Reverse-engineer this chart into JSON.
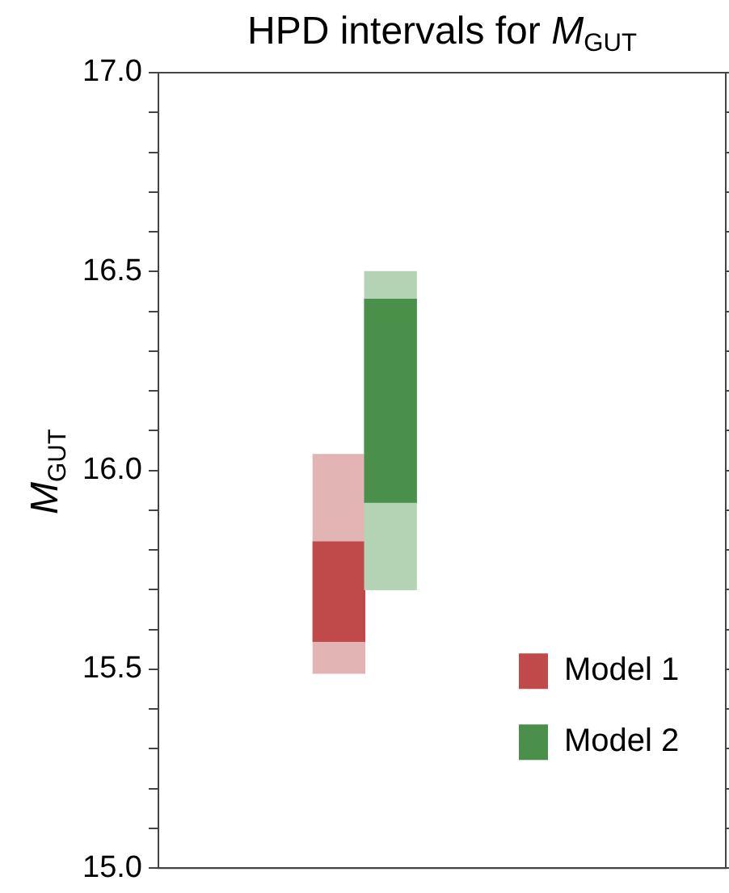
{
  "chart_data": {
    "type": "bar",
    "title": "HPD intervals for M$_{GUT}$",
    "ylabel": "M$_{GUT}$",
    "categories": [
      null,
      null,
      null,
      null,
      null,
      null,
      null,
      null,
      null,
      null,
      null
    ],
    "series": [
      {
        "color": "#e3b4b4",
        "values": [
          null,
          null,
          null,
          0.55,
          null,
          null,
          null,
          null,
          null,
          null,
          null
        ],
        "base": [
          null,
          null,
          null,
          15.49,
          null,
          null,
          null,
          null,
          null,
          null,
          null
        ]
      },
      {
        "name": "Model 1",
        "color": "#c04a4a",
        "values": [
          null,
          null,
          null,
          0.25,
          null,
          null,
          null,
          null,
          null,
          null,
          null
        ],
        "base": [
          null,
          null,
          null,
          15.57,
          null,
          null,
          null,
          null,
          null,
          null,
          null
        ]
      },
      {
        "color": "#b4d2b4",
        "values": [
          null,
          null,
          null,
          null,
          0.8,
          null,
          null,
          null,
          null,
          null,
          null
        ],
        "base": [
          null,
          null,
          null,
          null,
          15.7,
          null,
          null,
          null,
          null,
          null,
          null
        ]
      },
      {
        "name": "Model 2",
        "color": "#4a8f4a",
        "values": [
          null,
          null,
          null,
          null,
          0.51,
          null,
          null,
          null,
          null,
          null,
          null
        ],
        "base": [
          null,
          null,
          null,
          null,
          15.92,
          null,
          null,
          null,
          null,
          null,
          null
        ]
      }
    ],
    "ylim": [
      15.0,
      17.0
    ],
    "yticks": [
      {
        "value": 15.0,
        "label": "15.0"
      },
      {
        "value": 15.1,
        "label": null
      },
      {
        "value": 15.2,
        "label": null
      },
      {
        "value": 15.3,
        "label": null
      },
      {
        "value": 15.4,
        "label": null
      },
      {
        "value": 15.5,
        "label": "15.5"
      },
      {
        "value": 15.6,
        "label": null
      },
      {
        "value": 15.7,
        "label": null
      },
      {
        "value": 15.8,
        "label": null
      },
      {
        "value": 15.9,
        "label": null
      },
      {
        "value": 16.0,
        "label": "16.0"
      },
      {
        "value": 16.1,
        "label": null
      },
      {
        "value": 16.2,
        "label": null
      },
      {
        "value": 16.3,
        "label": null
      },
      {
        "value": 16.4,
        "label": null
      },
      {
        "value": 16.5,
        "label": "16.5"
      },
      {
        "value": 16.6,
        "label": null
      },
      {
        "value": 16.7,
        "label": null
      },
      {
        "value": 16.8,
        "label": null
      },
      {
        "value": 16.9,
        "label": null
      },
      {
        "value": 17.0,
        "label": "17.0"
      }
    ],
    "legend": "bottom right",
    "grid": false
  }
}
